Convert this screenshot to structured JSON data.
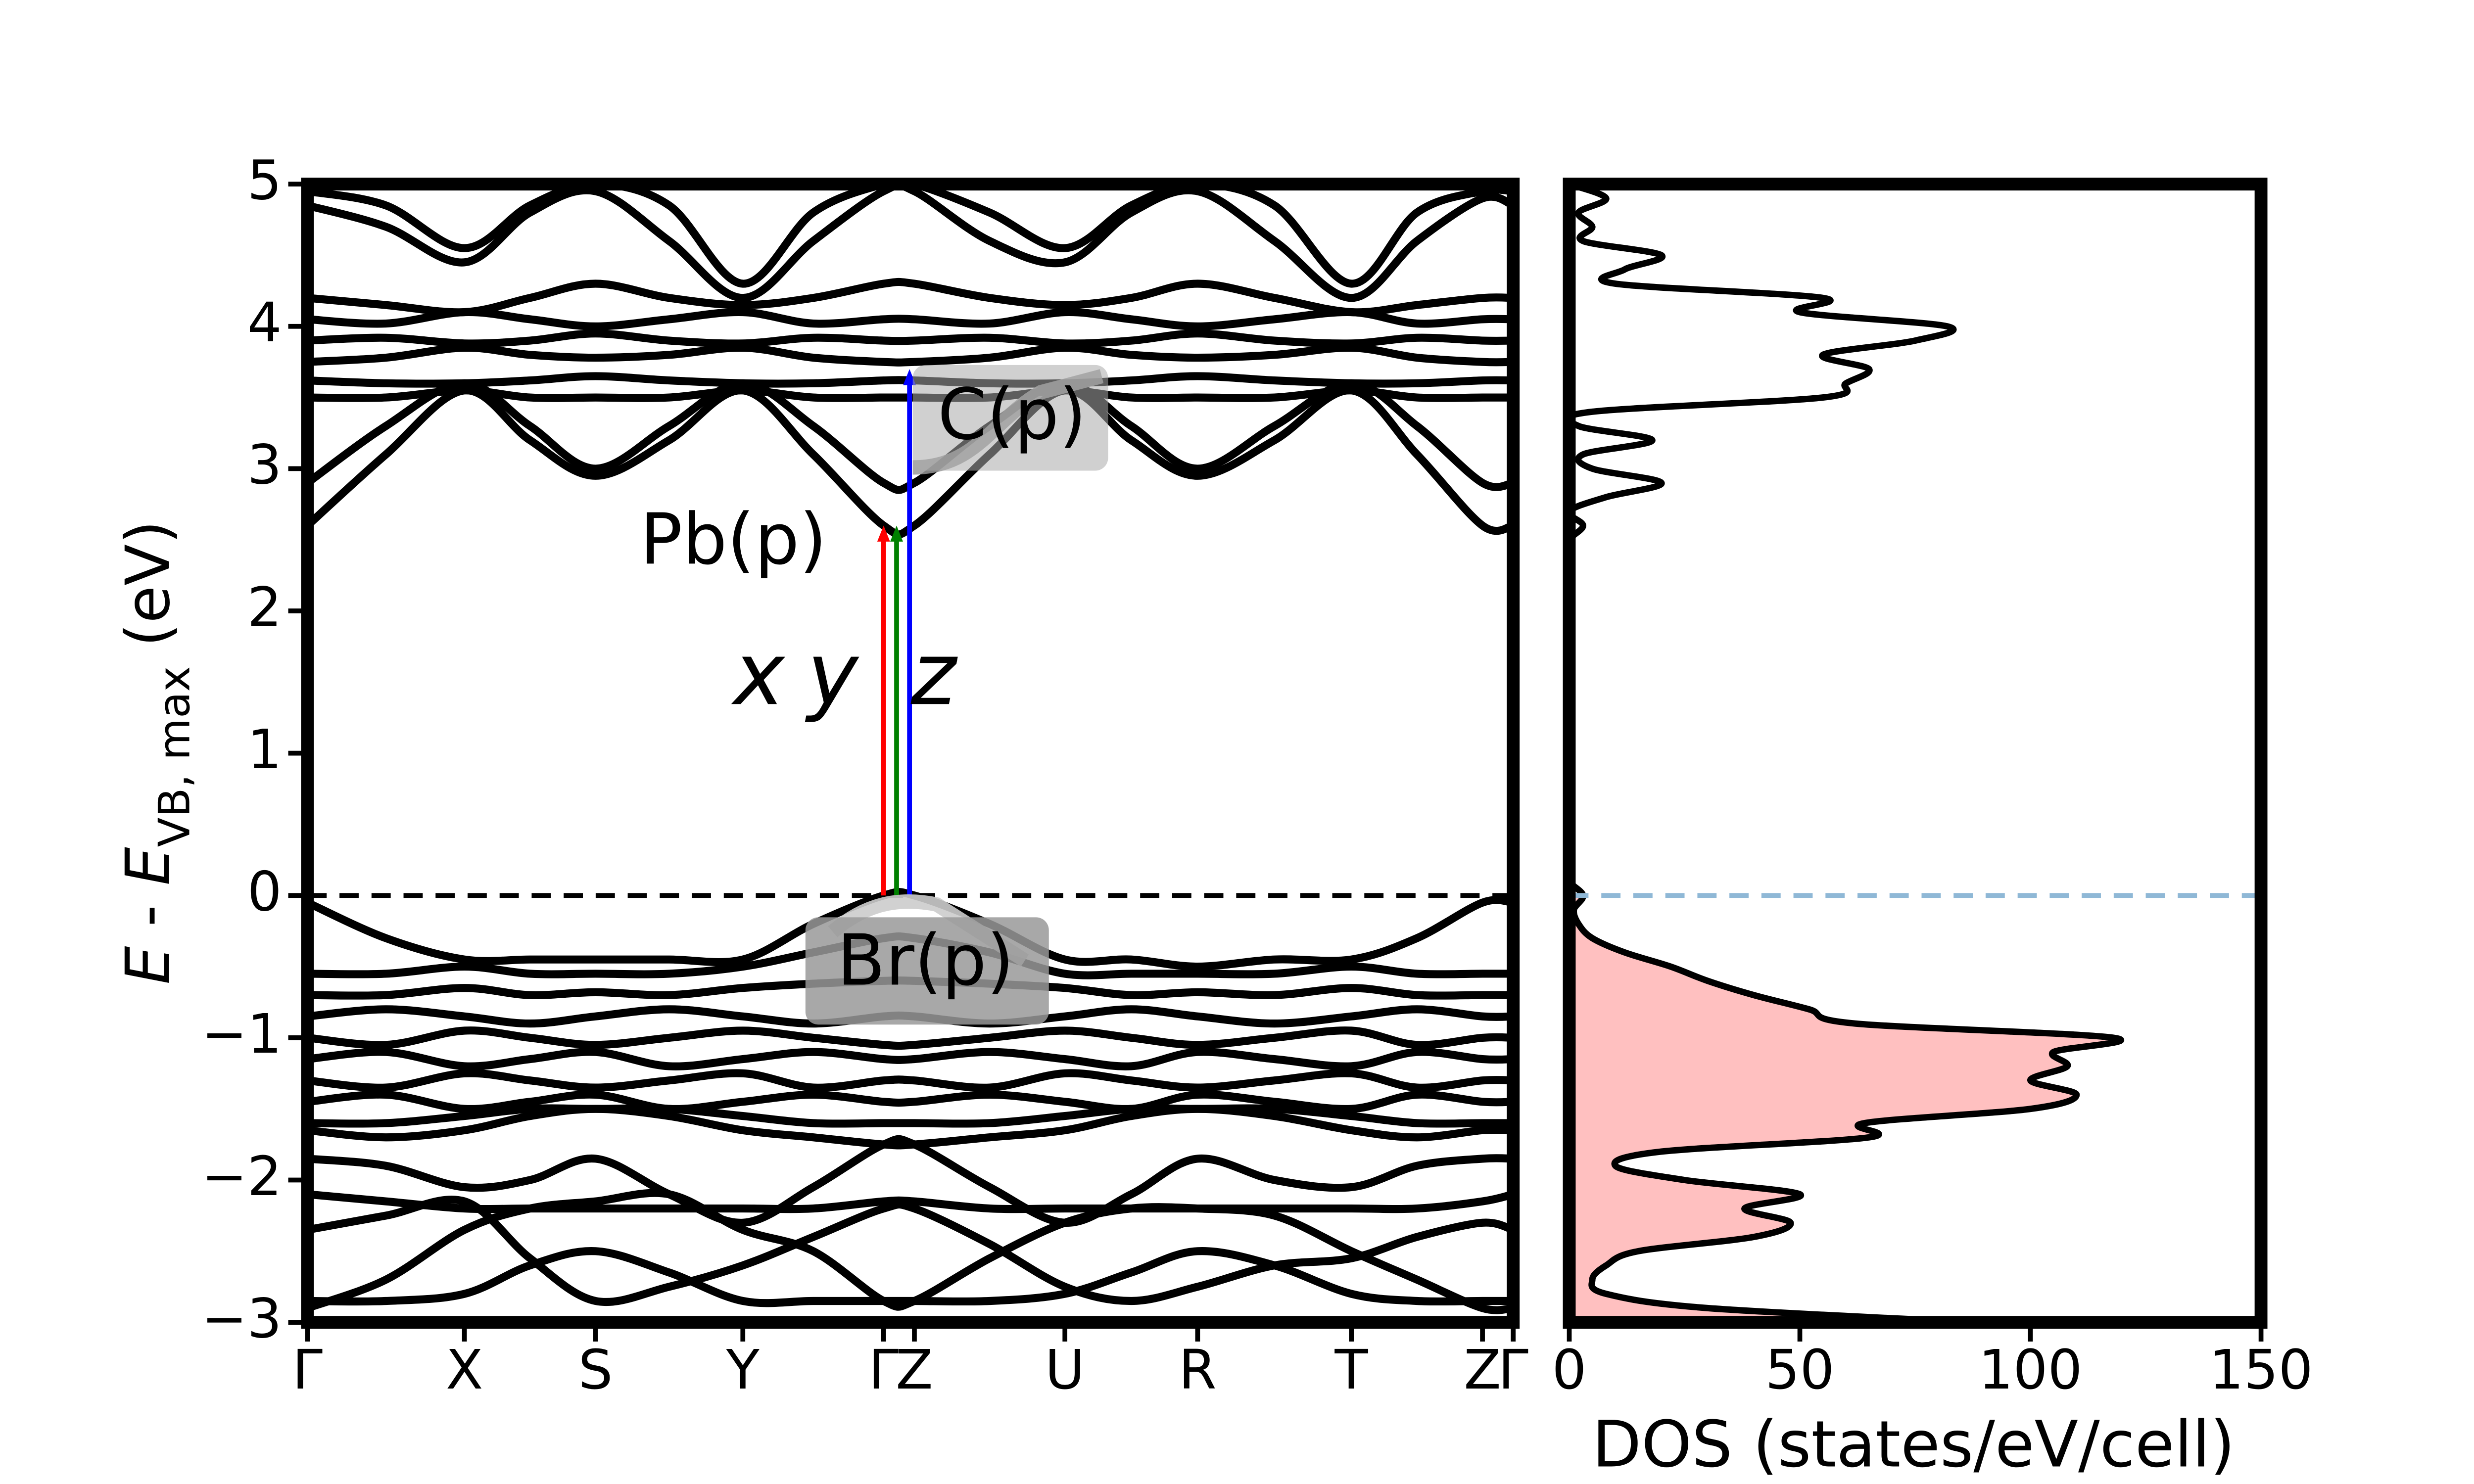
{
  "chart_data": [
    {
      "type": "line",
      "ylabel": [
        "E",
        " - ",
        "E",
        "VB, max",
        " (eV)"
      ],
      "x": [
        0,
        0.485,
        0.97,
        1.375,
        1.78,
        2.235,
        2.69,
        3.125,
        3.56,
        3.75,
        4.215,
        4.68,
        5.09,
        5.5,
        5.975,
        6.45,
        6.855,
        7.26,
        7.45
      ],
      "xlim": [
        0,
        7.45
      ],
      "xticks": [
        {
          "value": 0,
          "label": "Γ"
        },
        {
          "value": 0.97,
          "label": "X"
        },
        {
          "value": 1.78,
          "label": "S"
        },
        {
          "value": 2.69,
          "label": "Y"
        },
        {
          "value": 3.56,
          "label": "Γ"
        },
        {
          "value": 3.75,
          "label": "Z"
        },
        {
          "value": 4.68,
          "label": "U"
        },
        {
          "value": 5.5,
          "label": "R"
        },
        {
          "value": 6.45,
          "label": "T"
        },
        {
          "value": 7.26,
          "label": "Z"
        },
        {
          "value": 7.45,
          "label": "Γ"
        }
      ],
      "ylim": [
        -3,
        5
      ],
      "yticks": [
        {
          "value": -3,
          "label": "−3"
        },
        {
          "value": -2,
          "label": "−2"
        },
        {
          "value": -1,
          "label": "−1"
        },
        0,
        1,
        2,
        3,
        4,
        5
      ],
      "color": "#000000",
      "reference_line": 0,
      "reference_color": "#000000",
      "series": [
        {
          "values": [
            2.6,
            3.1,
            3.55,
            3.2,
            2.95,
            3.2,
            3.55,
            3.1,
            2.6,
            2.6,
            3.1,
            3.55,
            3.2,
            2.95,
            3.2,
            3.55,
            3.1,
            2.6,
            2.6
          ]
        },
        {
          "values": [
            2.9,
            3.3,
            3.6,
            3.3,
            3.0,
            3.3,
            3.6,
            3.3,
            2.9,
            2.9,
            3.3,
            3.6,
            3.3,
            3.0,
            3.3,
            3.6,
            3.3,
            2.9,
            2.9
          ]
        },
        {
          "values": [
            3.5,
            3.5,
            3.55,
            3.5,
            3.5,
            3.5,
            3.55,
            3.5,
            3.5,
            3.5,
            3.5,
            3.55,
            3.5,
            3.5,
            3.5,
            3.55,
            3.5,
            3.5,
            3.5
          ]
        },
        {
          "values": [
            3.62,
            3.6,
            3.6,
            3.62,
            3.65,
            3.62,
            3.6,
            3.6,
            3.62,
            3.62,
            3.6,
            3.6,
            3.62,
            3.65,
            3.62,
            3.6,
            3.6,
            3.62,
            3.62
          ]
        },
        {
          "values": [
            3.75,
            3.78,
            3.85,
            3.8,
            3.78,
            3.8,
            3.85,
            3.78,
            3.75,
            3.75,
            3.78,
            3.85,
            3.8,
            3.78,
            3.8,
            3.85,
            3.78,
            3.75,
            3.75
          ]
        },
        {
          "values": [
            3.9,
            3.92,
            3.88,
            3.9,
            3.95,
            3.9,
            3.88,
            3.92,
            3.9,
            3.9,
            3.92,
            3.88,
            3.9,
            3.95,
            3.9,
            3.88,
            3.92,
            3.9,
            3.9
          ]
        },
        {
          "values": [
            4.05,
            4.02,
            4.1,
            4.05,
            4.0,
            4.05,
            4.1,
            4.02,
            4.05,
            4.05,
            4.02,
            4.1,
            4.05,
            4.0,
            4.05,
            4.1,
            4.02,
            4.05,
            4.05
          ]
        },
        {
          "values": [
            4.2,
            4.15,
            4.1,
            4.2,
            4.3,
            4.2,
            4.15,
            4.2,
            4.3,
            4.3,
            4.2,
            4.15,
            4.2,
            4.3,
            4.2,
            4.1,
            4.15,
            4.2,
            4.2
          ]
        },
        {
          "values": [
            4.85,
            4.7,
            4.45,
            4.8,
            4.95,
            4.6,
            4.2,
            4.6,
            4.95,
            4.95,
            4.6,
            4.45,
            4.8,
            4.95,
            4.6,
            4.2,
            4.6,
            4.9,
            4.85
          ]
        },
        {
          "values": [
            4.95,
            4.85,
            4.55,
            4.85,
            5.0,
            4.85,
            4.3,
            4.8,
            5.0,
            5.0,
            4.8,
            4.55,
            4.85,
            5.0,
            4.85,
            4.3,
            4.8,
            4.95,
            4.95
          ]
        },
        {
          "values": [
            -0.05,
            -0.3,
            -0.45,
            -0.45,
            -0.45,
            -0.45,
            -0.45,
            -0.2,
            0.0,
            0.0,
            -0.2,
            -0.45,
            -0.45,
            -0.5,
            -0.45,
            -0.45,
            -0.3,
            -0.05,
            -0.05
          ]
        },
        {
          "values": [
            -0.55,
            -0.55,
            -0.5,
            -0.55,
            -0.55,
            -0.55,
            -0.5,
            -0.4,
            -0.3,
            -0.3,
            -0.4,
            -0.55,
            -0.55,
            -0.55,
            -0.55,
            -0.5,
            -0.55,
            -0.55,
            -0.55
          ]
        },
        {
          "values": [
            -0.7,
            -0.7,
            -0.65,
            -0.7,
            -0.68,
            -0.7,
            -0.65,
            -0.62,
            -0.6,
            -0.6,
            -0.62,
            -0.65,
            -0.7,
            -0.68,
            -0.7,
            -0.65,
            -0.7,
            -0.7,
            -0.7
          ]
        },
        {
          "values": [
            -0.85,
            -0.8,
            -0.85,
            -0.9,
            -0.85,
            -0.8,
            -0.85,
            -0.9,
            -0.85,
            -0.85,
            -0.9,
            -0.85,
            -0.8,
            -0.85,
            -0.9,
            -0.85,
            -0.8,
            -0.85,
            -0.85
          ]
        },
        {
          "values": [
            -1.0,
            -1.05,
            -0.95,
            -1.0,
            -1.05,
            -1.0,
            -0.95,
            -1.0,
            -1.05,
            -1.05,
            -1.0,
            -0.95,
            -1.0,
            -1.05,
            -1.0,
            -0.95,
            -1.05,
            -1.0,
            -1.0
          ]
        },
        {
          "values": [
            -1.15,
            -1.1,
            -1.2,
            -1.15,
            -1.1,
            -1.2,
            -1.15,
            -1.1,
            -1.15,
            -1.15,
            -1.1,
            -1.15,
            -1.2,
            -1.1,
            -1.15,
            -1.2,
            -1.1,
            -1.15,
            -1.15
          ]
        },
        {
          "values": [
            -1.3,
            -1.35,
            -1.25,
            -1.3,
            -1.35,
            -1.3,
            -1.25,
            -1.35,
            -1.3,
            -1.3,
            -1.35,
            -1.25,
            -1.3,
            -1.35,
            -1.3,
            -1.25,
            -1.35,
            -1.3,
            -1.3
          ]
        },
        {
          "values": [
            -1.45,
            -1.4,
            -1.5,
            -1.45,
            -1.4,
            -1.5,
            -1.45,
            -1.4,
            -1.45,
            -1.45,
            -1.4,
            -1.45,
            -1.5,
            -1.4,
            -1.45,
            -1.5,
            -1.4,
            -1.45,
            -1.45
          ]
        },
        {
          "values": [
            -1.6,
            -1.6,
            -1.55,
            -1.5,
            -1.5,
            -1.5,
            -1.55,
            -1.6,
            -1.6,
            -1.6,
            -1.6,
            -1.55,
            -1.5,
            -1.5,
            -1.5,
            -1.55,
            -1.6,
            -1.6,
            -1.6
          ]
        },
        {
          "values": [
            -1.65,
            -1.7,
            -1.65,
            -1.55,
            -1.5,
            -1.55,
            -1.65,
            -1.7,
            -1.75,
            -1.75,
            -1.7,
            -1.65,
            -1.55,
            -1.5,
            -1.55,
            -1.65,
            -1.7,
            -1.65,
            -1.65
          ]
        },
        {
          "values": [
            -1.85,
            -1.9,
            -2.05,
            -2.0,
            -1.85,
            -2.1,
            -2.3,
            -2.05,
            -1.75,
            -1.75,
            -2.05,
            -2.3,
            -2.1,
            -1.85,
            -2.0,
            -2.05,
            -1.9,
            -1.85,
            -1.85
          ]
        },
        {
          "values": [
            -2.1,
            -2.15,
            -2.2,
            -2.2,
            -2.2,
            -2.2,
            -2.2,
            -2.2,
            -2.15,
            -2.15,
            -2.2,
            -2.2,
            -2.2,
            -2.2,
            -2.2,
            -2.2,
            -2.2,
            -2.15,
            -2.1
          ]
        },
        {
          "values": [
            -2.35,
            -2.25,
            -2.15,
            -2.55,
            -2.85,
            -2.75,
            -2.6,
            -2.4,
            -2.2,
            -2.2,
            -2.45,
            -2.75,
            -2.85,
            -2.75,
            -2.6,
            -2.55,
            -2.4,
            -2.3,
            -2.35
          ]
        },
        {
          "values": [
            -2.9,
            -2.7,
            -2.35,
            -2.2,
            -2.15,
            -2.1,
            -2.35,
            -2.5,
            -2.85,
            -2.85,
            -2.55,
            -2.3,
            -2.2,
            -2.2,
            -2.25,
            -2.5,
            -2.7,
            -2.9,
            -2.9
          ]
        },
        {
          "values": [
            -2.85,
            -2.85,
            -2.8,
            -2.6,
            -2.5,
            -2.65,
            -2.85,
            -2.85,
            -2.85,
            -2.85,
            -2.85,
            -2.8,
            -2.65,
            -2.5,
            -2.6,
            -2.8,
            -2.85,
            -2.85,
            -2.85
          ]
        }
      ],
      "transitions": [
        {
          "label": "x",
          "color": "#ff0000",
          "x": 3.56,
          "from": 0,
          "to": 2.6
        },
        {
          "label": "y",
          "color": "#008000",
          "x": 3.64,
          "from": 0,
          "to": 2.6
        },
        {
          "label": "z",
          "color": "#0000ff",
          "x": 3.72,
          "from": 0,
          "to": 3.7
        }
      ],
      "annotations": [
        "Pb(p)",
        "C(p)",
        "Br(p)"
      ]
    },
    {
      "type": "line",
      "orientation": "horizontal",
      "xlabel": "DOS (states/eV/cell)",
      "xlim": [
        0,
        150
      ],
      "xticks": [
        0,
        50,
        100,
        150
      ],
      "ylim": [
        -3,
        5
      ],
      "color": "#000000",
      "fill_color": "#ffc0c0",
      "reference_line": 0,
      "reference_color": "#8fb8d6",
      "energies": [
        -3.0,
        -2.9,
        -2.8,
        -2.7,
        -2.6,
        -2.5,
        -2.4,
        -2.3,
        -2.2,
        -2.1,
        -2.0,
        -1.9,
        -1.8,
        -1.7,
        -1.6,
        -1.5,
        -1.4,
        -1.3,
        -1.2,
        -1.1,
        -1.0,
        -0.9,
        -0.8,
        -0.7,
        -0.6,
        -0.5,
        -0.4,
        -0.3,
        -0.2,
        -0.1,
        0.0,
        0.1,
        0.2,
        0.3,
        0.4,
        0.5,
        0.6,
        0.7,
        0.8,
        0.9,
        1.0,
        1.1,
        1.2,
        1.3,
        1.4,
        1.5,
        1.6,
        1.7,
        1.8,
        1.9,
        2.0,
        2.1,
        2.2,
        2.3,
        2.4,
        2.5,
        2.6,
        2.7,
        2.8,
        2.9,
        3.0,
        3.1,
        3.2,
        3.3,
        3.4,
        3.5,
        3.6,
        3.7,
        3.8,
        3.9,
        4.0,
        4.1,
        4.2,
        4.3,
        4.4,
        4.5,
        4.6,
        4.7,
        4.8,
        4.9,
        5.0
      ],
      "values": [
        88,
        30,
        8,
        5,
        8,
        15,
        40,
        48,
        38,
        50,
        25,
        10,
        20,
        65,
        64,
        100,
        110,
        100,
        108,
        105,
        118,
        62,
        52,
        40,
        30,
        22,
        12,
        5,
        2,
        1,
        3,
        0,
        0,
        0,
        0,
        0,
        0,
        0,
        0,
        0,
        0,
        0,
        0,
        0,
        0,
        0,
        0,
        0,
        0,
        0,
        0,
        0,
        0,
        0,
        0,
        0,
        3,
        0,
        8,
        20,
        5,
        3,
        18,
        2,
        5,
        55,
        60,
        65,
        55,
        75,
        82,
        50,
        55,
        10,
        12,
        20,
        3,
        5,
        2,
        8,
        0
      ]
    }
  ]
}
